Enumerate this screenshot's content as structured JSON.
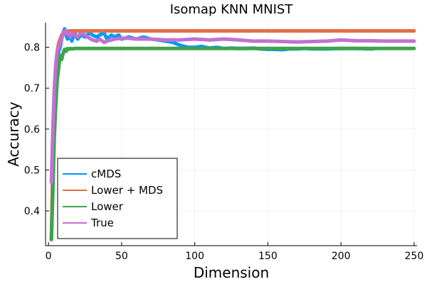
{
  "chart_data": {
    "type": "line",
    "title": "Isomap KNN MNIST",
    "xlabel": "Dimension",
    "ylabel": "Accuracy",
    "xlim": [
      -2,
      252
    ],
    "ylim": [
      0.315,
      0.86
    ],
    "xticks": [
      0,
      50,
      100,
      150,
      200,
      250
    ],
    "yticks": [
      0.4,
      0.5,
      0.6,
      0.7,
      0.8
    ],
    "grid": true,
    "legend_position": "bottom-left",
    "series": [
      {
        "name": "cMDS",
        "color": "#009AFA",
        "x": [
          2,
          3,
          4,
          5,
          6,
          7,
          8,
          9,
          10,
          11,
          12,
          13,
          14,
          15,
          16,
          17,
          18,
          19,
          20,
          22,
          25,
          28,
          30,
          33,
          35,
          38,
          40,
          43,
          45,
          48,
          50,
          55,
          60,
          65,
          70,
          75,
          80,
          85,
          90,
          95,
          100,
          105,
          110,
          115,
          120,
          125,
          130,
          135,
          140,
          145,
          150,
          155,
          160,
          165,
          170,
          175,
          180,
          190,
          200,
          210,
          220,
          222
        ],
        "values": [
          0.33,
          0.5,
          0.62,
          0.7,
          0.76,
          0.79,
          0.8,
          0.82,
          0.835,
          0.845,
          0.83,
          0.82,
          0.83,
          0.825,
          0.815,
          0.83,
          0.835,
          0.825,
          0.82,
          0.83,
          0.825,
          0.835,
          0.83,
          0.825,
          0.83,
          0.835,
          0.82,
          0.83,
          0.825,
          0.83,
          0.82,
          0.825,
          0.82,
          0.825,
          0.82,
          0.818,
          0.815,
          0.812,
          0.805,
          0.8,
          0.8,
          0.802,
          0.798,
          0.8,
          0.797,
          0.798,
          0.797,
          0.797,
          0.798,
          0.796,
          0.795,
          0.795,
          0.794,
          0.796,
          0.796,
          0.797,
          0.796,
          0.796,
          0.797,
          0.797,
          0.796,
          0.796
        ]
      },
      {
        "name": "Lower + MDS",
        "color": "#E26F46",
        "x": [
          2,
          3,
          4,
          5,
          6,
          7,
          8,
          9,
          10,
          11,
          12,
          14,
          16,
          18,
          20,
          25,
          30,
          40,
          50,
          100,
          150,
          200,
          250
        ],
        "values": [
          0.33,
          0.52,
          0.66,
          0.75,
          0.79,
          0.81,
          0.82,
          0.83,
          0.835,
          0.84,
          0.838,
          0.84,
          0.84,
          0.84,
          0.84,
          0.84,
          0.84,
          0.84,
          0.84,
          0.84,
          0.84,
          0.84,
          0.84
        ]
      },
      {
        "name": "Lower",
        "color": "#3DA44D",
        "x": [
          2,
          3,
          4,
          5,
          6,
          7,
          8,
          9,
          10,
          11,
          12,
          13,
          14,
          15,
          16,
          18,
          20,
          25,
          30,
          50,
          100,
          150,
          200,
          250
        ],
        "values": [
          0.33,
          0.45,
          0.58,
          0.66,
          0.72,
          0.75,
          0.78,
          0.77,
          0.785,
          0.795,
          0.79,
          0.797,
          0.795,
          0.797,
          0.796,
          0.797,
          0.797,
          0.797,
          0.797,
          0.797,
          0.797,
          0.797,
          0.797,
          0.797
        ]
      },
      {
        "name": "True",
        "color": "#C271D2",
        "x": [
          2,
          3,
          4,
          5,
          6,
          7,
          8,
          9,
          10,
          11,
          12,
          13,
          14,
          15,
          16,
          18,
          20,
          22,
          25,
          28,
          30,
          33,
          35,
          38,
          40,
          45,
          50,
          55,
          60,
          70,
          80,
          90,
          100,
          110,
          120,
          130,
          140,
          150,
          160,
          170,
          180,
          190,
          200,
          210,
          220,
          230,
          240,
          250
        ],
        "values": [
          0.47,
          0.6,
          0.7,
          0.76,
          0.79,
          0.8,
          0.81,
          0.82,
          0.835,
          0.84,
          0.832,
          0.835,
          0.83,
          0.825,
          0.835,
          0.83,
          0.825,
          0.835,
          0.83,
          0.822,
          0.818,
          0.815,
          0.82,
          0.812,
          0.815,
          0.82,
          0.822,
          0.822,
          0.82,
          0.82,
          0.818,
          0.818,
          0.82,
          0.818,
          0.82,
          0.818,
          0.815,
          0.815,
          0.814,
          0.813,
          0.814,
          0.815,
          0.818,
          0.816,
          0.816,
          0.815,
          0.815,
          0.815
        ]
      }
    ]
  }
}
